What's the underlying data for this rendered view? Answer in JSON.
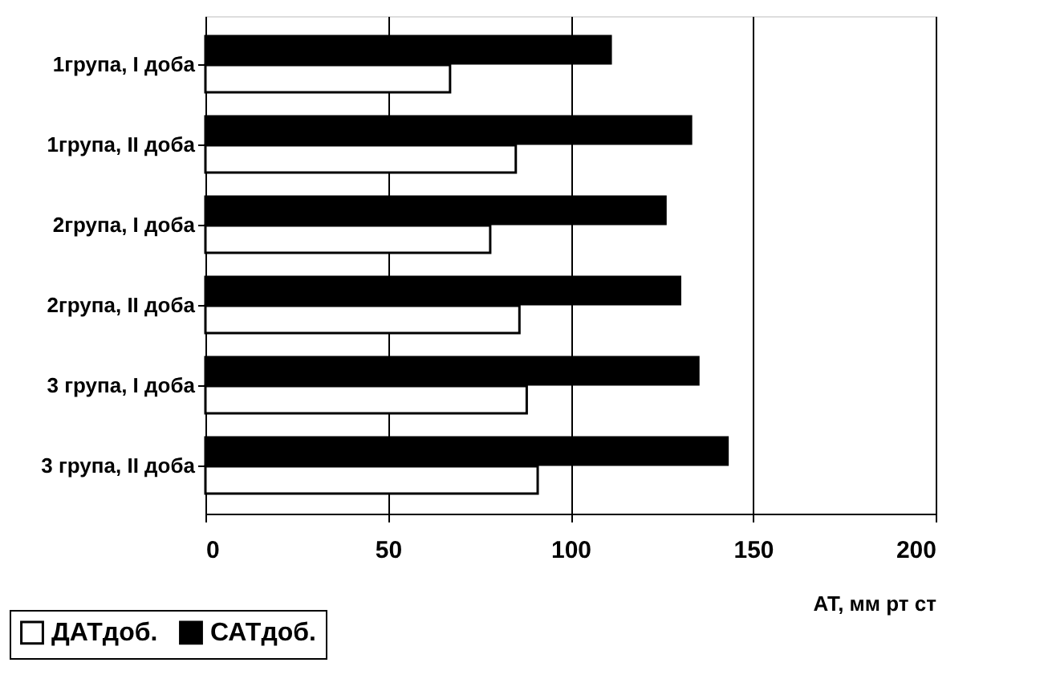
{
  "chart_data": {
    "type": "bar",
    "orientation": "horizontal",
    "categories": [
      "1група, I доба",
      "1група, II доба",
      "2група, I доба",
      "2група, II доба",
      "3 група, I доба",
      "3 група, II доба"
    ],
    "series": [
      {
        "name": "ДАТдоб.",
        "color": "#ffffff",
        "values": [
          67,
          85,
          78,
          86,
          88,
          91
        ]
      },
      {
        "name": "САТдоб.",
        "color": "#000000",
        "values": [
          111,
          133,
          126,
          130,
          135,
          143
        ]
      }
    ],
    "xlabel": "АТ, мм рт ст",
    "xlim": [
      0,
      200
    ],
    "xticks": [
      0,
      50,
      100,
      150,
      200
    ],
    "grid": "x",
    "legend": "bottom left"
  }
}
